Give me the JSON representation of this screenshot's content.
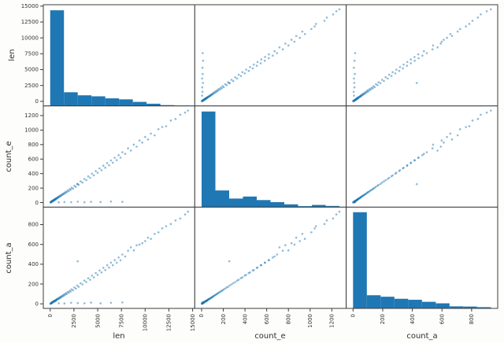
{
  "figure": {
    "background": "#fdfdfc",
    "panel_background": "#ffffff",
    "frame_color": "#3d3d3d",
    "bar_color": "#1f77b4",
    "point_color": "#1f77b4",
    "point_opacity": 0.5,
    "tick_color": "#333333"
  },
  "chart_data": {
    "type": "scatter_matrix",
    "title": "",
    "variables": [
      "len",
      "count_e",
      "count_a"
    ],
    "layout": {
      "rows": 3,
      "cols": 3,
      "diagonal": "histogram",
      "grid": false,
      "legend": "none"
    },
    "axes": {
      "len": {
        "lim": [
          -725,
          15225
        ],
        "ticks": [
          0,
          2500,
          5000,
          7500,
          10000,
          12500,
          15000
        ]
      },
      "count_e": {
        "lim": [
          -63,
          1333
        ],
        "ticks": [
          0,
          200,
          400,
          600,
          800,
          1000,
          1200
        ]
      },
      "count_a": {
        "lim": [
          -46,
          976
        ],
        "ticks": [
          0,
          200,
          400,
          600,
          800
        ]
      }
    },
    "histograms": {
      "len": {
        "bin_start": 0,
        "bin_width": 1450,
        "bins": 10,
        "bar_height_fractions": [
          0.945,
          0.135,
          0.105,
          0.095,
          0.075,
          0.065,
          0.04,
          0.022,
          0.008,
          0.004
        ]
      },
      "count_e": {
        "bin_start": 0,
        "bin_width": 127,
        "bins": 10,
        "bar_height_fractions": [
          0.945,
          0.165,
          0.085,
          0.105,
          0.07,
          0.05,
          0.028,
          0.01,
          0.022,
          0.012
        ]
      },
      "count_a": {
        "bin_start": 0,
        "bin_width": 93,
        "bins": 10,
        "bar_height_fractions": [
          0.95,
          0.13,
          0.115,
          0.095,
          0.085,
          0.065,
          0.05,
          0.02,
          0.018,
          0.012
        ]
      }
    },
    "records_columns": [
      "len",
      "count_e",
      "count_a"
    ],
    "records": [
      [
        30,
        2,
        1
      ],
      [
        45,
        5,
        2
      ],
      [
        60,
        4,
        3
      ],
      [
        70,
        8,
        5
      ],
      [
        85,
        6,
        4
      ],
      [
        95,
        10,
        7
      ],
      [
        110,
        8,
        6
      ],
      [
        120,
        13,
        8
      ],
      [
        130,
        10,
        9
      ],
      [
        145,
        15,
        9
      ],
      [
        155,
        12,
        11
      ],
      [
        170,
        17,
        10
      ],
      [
        180,
        14,
        12
      ],
      [
        190,
        19,
        13
      ],
      [
        200,
        16,
        12
      ],
      [
        215,
        21,
        15
      ],
      [
        225,
        18,
        13
      ],
      [
        240,
        23,
        17
      ],
      [
        250,
        20,
        15
      ],
      [
        265,
        26,
        18
      ],
      [
        275,
        22,
        16
      ],
      [
        290,
        28,
        20
      ],
      [
        300,
        24,
        18
      ],
      [
        315,
        30,
        22
      ],
      [
        330,
        27,
        19
      ],
      [
        345,
        33,
        23
      ],
      [
        360,
        29,
        21
      ],
      [
        375,
        35,
        25
      ],
      [
        390,
        32,
        23
      ],
      [
        405,
        38,
        27
      ],
      [
        420,
        34,
        24
      ],
      [
        435,
        41,
        29
      ],
      [
        450,
        37,
        26
      ],
      [
        465,
        43,
        31
      ],
      [
        480,
        39,
        28
      ],
      [
        495,
        46,
        32
      ],
      [
        510,
        42,
        29
      ],
      [
        530,
        49,
        34
      ],
      [
        550,
        45,
        31
      ],
      [
        570,
        52,
        36
      ],
      [
        590,
        48,
        33
      ],
      [
        620,
        57,
        40
      ],
      [
        650,
        54,
        37
      ],
      [
        680,
        62,
        45
      ],
      [
        710,
        59,
        42
      ],
      [
        740,
        68,
        49
      ],
      [
        780,
        65,
        46
      ],
      [
        820,
        76,
        53
      ],
      [
        860,
        72,
        50
      ],
      [
        900,
        82,
        58
      ],
      [
        950,
        78,
        54
      ],
      [
        1000,
        92,
        65
      ],
      [
        1050,
        87,
        60
      ],
      [
        1100,
        100,
        72
      ],
      [
        1160,
        96,
        66
      ],
      [
        1220,
        111,
        79
      ],
      [
        1280,
        105,
        73
      ],
      [
        1350,
        123,
        88
      ],
      [
        1420,
        116,
        81
      ],
      [
        1500,
        137,
        98
      ],
      [
        1580,
        129,
        91
      ],
      [
        1660,
        151,
        108
      ],
      [
        1750,
        143,
        100
      ],
      [
        1850,
        168,
        120
      ],
      [
        1950,
        158,
        112
      ],
      [
        2050,
        186,
        133
      ],
      [
        2150,
        176,
        125
      ],
      [
        2250,
        204,
        146
      ],
      [
        2400,
        193,
        137
      ],
      [
        2550,
        231,
        165
      ],
      [
        2700,
        218,
        154
      ],
      [
        2850,
        259,
        185
      ],
      [
        3000,
        244,
        172
      ],
      [
        3200,
        292,
        208
      ],
      [
        3400,
        276,
        196
      ],
      [
        3600,
        327,
        234
      ],
      [
        3800,
        309,
        220
      ],
      [
        4000,
        362,
        259
      ],
      [
        4200,
        342,
        243
      ],
      [
        4400,
        398,
        285
      ],
      [
        4600,
        376,
        267
      ],
      [
        4800,
        435,
        311
      ],
      [
        5000,
        411,
        292
      ],
      [
        5200,
        472,
        337
      ],
      [
        5400,
        446,
        317
      ],
      [
        5600,
        509,
        364
      ],
      [
        5800,
        481,
        341
      ],
      [
        6000,
        545,
        390
      ],
      [
        6200,
        515,
        366
      ],
      [
        6400,
        582,
        416
      ],
      [
        6600,
        550,
        390
      ],
      [
        6800,
        619,
        442
      ],
      [
        7000,
        585,
        415
      ],
      [
        7200,
        655,
        468
      ],
      [
        7400,
        620,
        440
      ],
      [
        7600,
        695,
        498
      ],
      [
        7900,
        672,
        478
      ],
      [
        8200,
        748,
        536
      ],
      [
        8500,
        718,
        570
      ],
      [
        8800,
        800,
        540
      ],
      [
        9100,
        772,
        592
      ],
      [
        9400,
        856,
        598
      ],
      [
        9700,
        828,
        612
      ],
      [
        10000,
        905,
        634
      ],
      [
        10300,
        872,
        668
      ],
      [
        10600,
        952,
        656
      ],
      [
        11000,
        928,
        706
      ],
      [
        11400,
        1012,
        722
      ],
      [
        11800,
        1042,
        762
      ],
      [
        12200,
        1054,
        784
      ],
      [
        12700,
        1132,
        806
      ],
      [
        13200,
        1154,
        842
      ],
      [
        13700,
        1212,
        862
      ],
      [
        14200,
        1242,
        902
      ],
      [
        14500,
        1270,
        930
      ],
      [
        900,
        4,
        6
      ],
      [
        1500,
        8,
        4
      ],
      [
        2200,
        6,
        10
      ],
      [
        2900,
        12,
        8
      ],
      [
        3600,
        5,
        6
      ],
      [
        4300,
        10,
        12
      ],
      [
        5300,
        8,
        5
      ],
      [
        6400,
        14,
        10
      ],
      [
        7600,
        10,
        14
      ],
      [
        2900,
        255,
        430
      ]
    ]
  }
}
